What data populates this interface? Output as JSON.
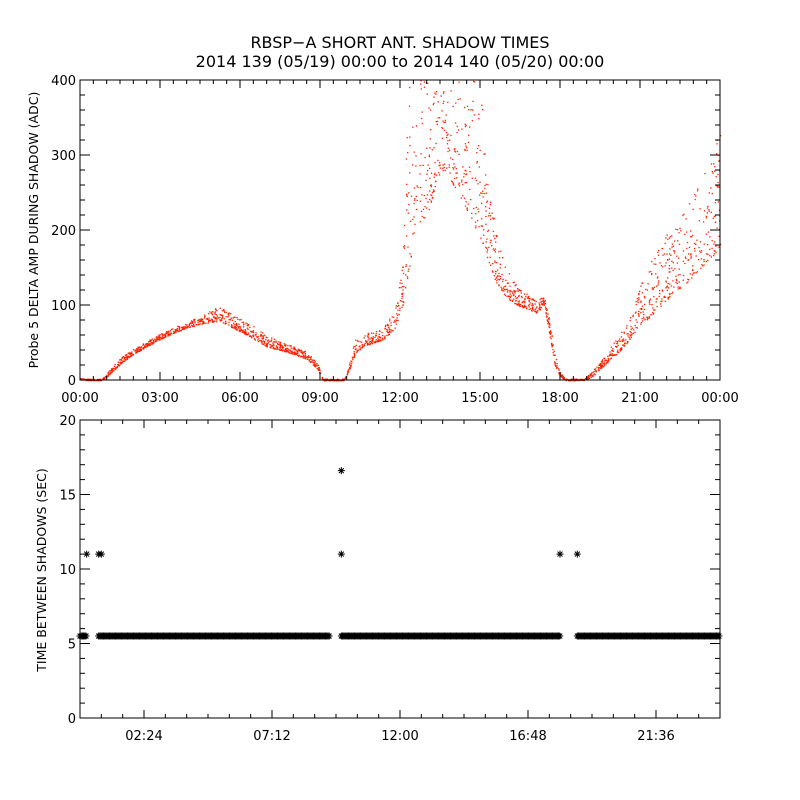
{
  "title_line1": "RBSP−A SHORT ANT. SHADOW TIMES",
  "title_line2": "2014 139 (05/19) 00:00 to 2014 140 (05/20) 00:00",
  "colors": {
    "amp_points": "#ff2000",
    "time_points": "#000000",
    "axes": "#000000"
  },
  "chart_data": [
    {
      "type": "scatter",
      "ylabel": "Probe 5 DELTA AMP DURING SHADOW (ADC)",
      "xlabel": "",
      "xlim": [
        0,
        24
      ],
      "ylim": [
        0,
        400
      ],
      "x_tick_values": [
        0,
        3,
        6,
        9,
        12,
        15,
        18,
        21,
        24
      ],
      "x_tick_labels": [
        "00:00",
        "03:00",
        "06:00",
        "09:00",
        "12:00",
        "15:00",
        "18:00",
        "21:00",
        "00:00"
      ],
      "y_ticks": [
        0,
        100,
        200,
        300,
        400
      ],
      "series": [
        {
          "marker": "dot",
          "color": "#ff2000",
          "x": [
            0.05,
            0.2,
            0.8,
            1.0,
            1.3,
            1.6,
            2.0,
            2.5,
            3.0,
            3.5,
            4.0,
            4.5,
            5.0,
            5.3,
            5.6,
            6.0,
            6.5,
            7.0,
            7.5,
            8.0,
            8.5,
            8.9,
            9.1,
            9.9,
            10.1,
            10.3,
            10.6,
            11.0,
            11.4,
            11.8,
            12.1,
            12.3,
            12.5,
            12.8,
            13.1,
            13.4,
            13.7,
            14.0,
            14.3,
            14.6,
            15.0,
            15.3,
            15.6,
            16.0,
            16.4,
            16.8,
            17.1,
            17.4,
            17.6,
            17.8,
            18.0,
            18.2,
            18.9,
            19.2,
            19.5,
            19.8,
            20.1,
            20.4,
            20.7,
            21.0,
            21.4,
            21.8,
            22.2,
            22.6,
            23.0,
            23.4,
            23.7,
            24.0
          ],
          "y": [
            1,
            0,
            0,
            5,
            15,
            25,
            35,
            45,
            55,
            63,
            70,
            75,
            78,
            78,
            72,
            65,
            55,
            45,
            40,
            35,
            28,
            15,
            0,
            0,
            15,
            35,
            45,
            50,
            55,
            70,
            100,
            140,
            190,
            210,
            230,
            270,
            280,
            260,
            240,
            220,
            190,
            160,
            130,
            110,
            100,
            95,
            90,
            100,
            60,
            20,
            5,
            0,
            0,
            5,
            15,
            25,
            35,
            45,
            60,
            75,
            85,
            100,
            115,
            125,
            140,
            155,
            165,
            175
          ],
          "upper_envelope_y": [
            3,
            2,
            2,
            10,
            22,
            32,
            42,
            52,
            62,
            70,
            78,
            85,
            95,
            98,
            90,
            82,
            72,
            60,
            52,
            45,
            38,
            22,
            2,
            2,
            25,
            55,
            62,
            65,
            72,
            95,
            160,
            400,
            400,
            400,
            400,
            400,
            400,
            400,
            400,
            400,
            400,
            260,
            200,
            150,
            125,
            115,
            110,
            110,
            80,
            35,
            10,
            2,
            2,
            12,
            25,
            40,
            55,
            70,
            95,
            130,
            160,
            185,
            205,
            225,
            250,
            275,
            300,
            350
          ]
        }
      ]
    },
    {
      "type": "scatter",
      "ylabel": "TIME BETWEEN SHADOWS (SEC)",
      "xlabel": "",
      "xlim": [
        0,
        24
      ],
      "ylim": [
        0,
        20
      ],
      "x_tick_values": [
        2.4,
        7.2,
        12.0,
        16.8,
        21.6
      ],
      "x_tick_labels": [
        "02:24",
        "07:12",
        "12:00",
        "16:48",
        "21:36"
      ],
      "y_ticks": [
        0,
        5,
        10,
        15,
        20
      ],
      "series": [
        {
          "marker": "asterisk",
          "color": "#000000",
          "baseline_value": 5.5,
          "baseline_spans": [
            [
              0.0,
              0.25
            ],
            [
              0.7,
              9.35
            ],
            [
              9.8,
              18.0
            ],
            [
              18.65,
              24.0
            ]
          ],
          "points": [
            {
              "x": 0.25,
              "y": 11.0
            },
            {
              "x": 0.7,
              "y": 11.0
            },
            {
              "x": 0.8,
              "y": 11.0
            },
            {
              "x": 9.8,
              "y": 16.6
            },
            {
              "x": 9.8,
              "y": 11.0
            },
            {
              "x": 18.0,
              "y": 11.0
            },
            {
              "x": 18.65,
              "y": 11.0
            }
          ]
        }
      ]
    }
  ]
}
